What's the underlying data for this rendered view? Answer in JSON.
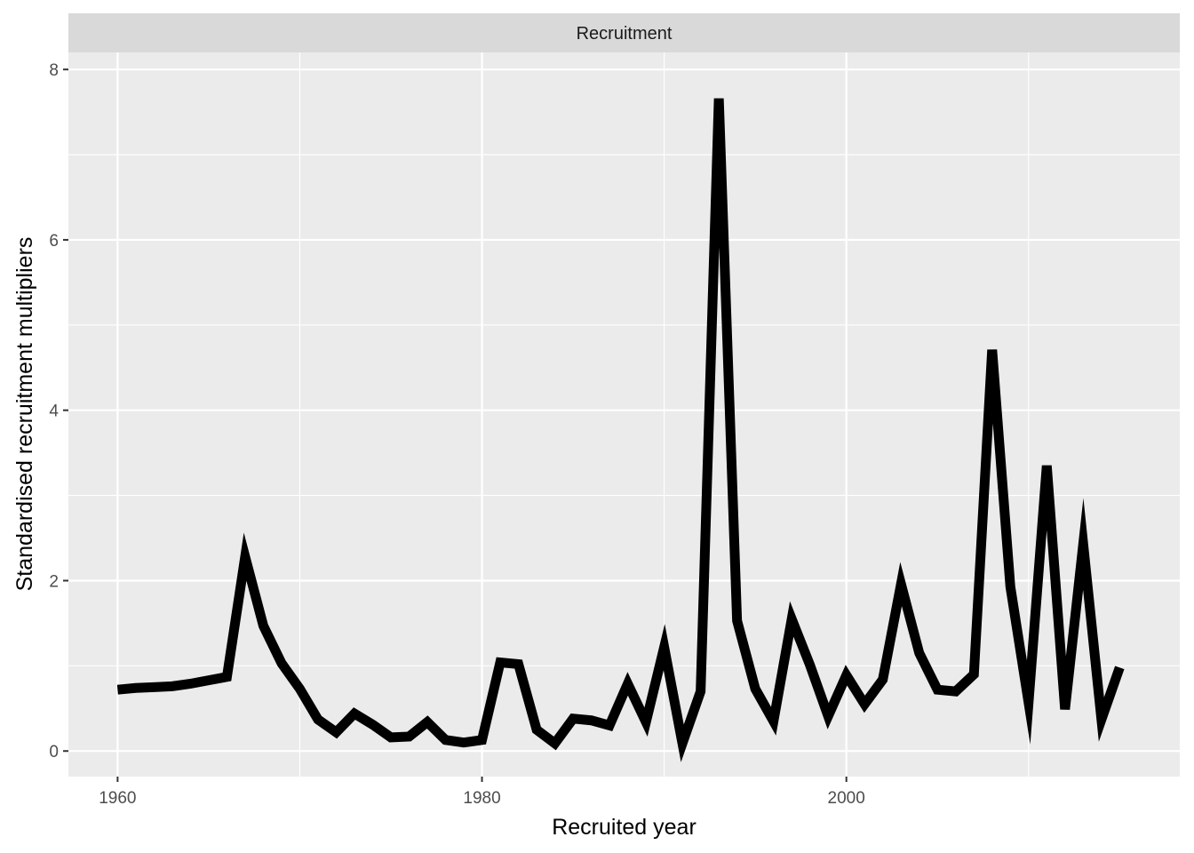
{
  "chart_data": {
    "type": "line",
    "facet_label": "Recruitment",
    "xlabel": "Recruited year",
    "ylabel": "Standardised recruitment multipliers",
    "xlim": [
      1957.3,
      2018.3
    ],
    "ylim": [
      -0.3,
      8.2
    ],
    "x_ticks": [
      1960,
      1980,
      2000
    ],
    "x_tick_labels": [
      "1960",
      "1980",
      "2000"
    ],
    "y_ticks": [
      0,
      2,
      4,
      6,
      8
    ],
    "y_tick_labels": [
      "0",
      "2",
      "4",
      "6",
      "8"
    ],
    "grid": true,
    "panel_background": "#ebebeb",
    "strip_background": "#d9d9d9",
    "grid_color": "#ffffff",
    "line_color": "#000000",
    "series": [
      {
        "x": [
          1960,
          1961,
          1962,
          1963,
          1964,
          1965,
          1966,
          1967,
          1968,
          1969,
          1970,
          1971,
          1972,
          1973,
          1974,
          1975,
          1976,
          1977,
          1978,
          1979,
          1980,
          1981,
          1982,
          1983,
          1984,
          1985,
          1986,
          1987,
          1988,
          1989,
          1990,
          1991,
          1992,
          1993,
          1994,
          1995,
          1996,
          1997,
          1998,
          1999,
          2000,
          2001,
          2002,
          2003,
          2004,
          2005,
          2006,
          2007,
          2008,
          2009,
          2010,
          2011,
          2012,
          2013,
          2014,
          2015
        ],
        "values": [
          0.72,
          0.74,
          0.75,
          0.76,
          0.79,
          0.83,
          0.87,
          2.28,
          1.47,
          1.03,
          0.73,
          0.37,
          0.22,
          0.44,
          0.31,
          0.16,
          0.17,
          0.34,
          0.13,
          0.1,
          0.13,
          1.04,
          1.02,
          0.25,
          0.09,
          0.38,
          0.36,
          0.3,
          0.79,
          0.34,
          1.22,
          0.09,
          0.7,
          7.66,
          1.53,
          0.73,
          0.35,
          1.55,
          1.01,
          0.41,
          0.89,
          0.55,
          0.84,
          1.96,
          1.15,
          0.72,
          0.7,
          0.9,
          4.71,
          1.93,
          0.57,
          3.35,
          0.49,
          2.43,
          0.37,
          0.98
        ]
      }
    ]
  }
}
